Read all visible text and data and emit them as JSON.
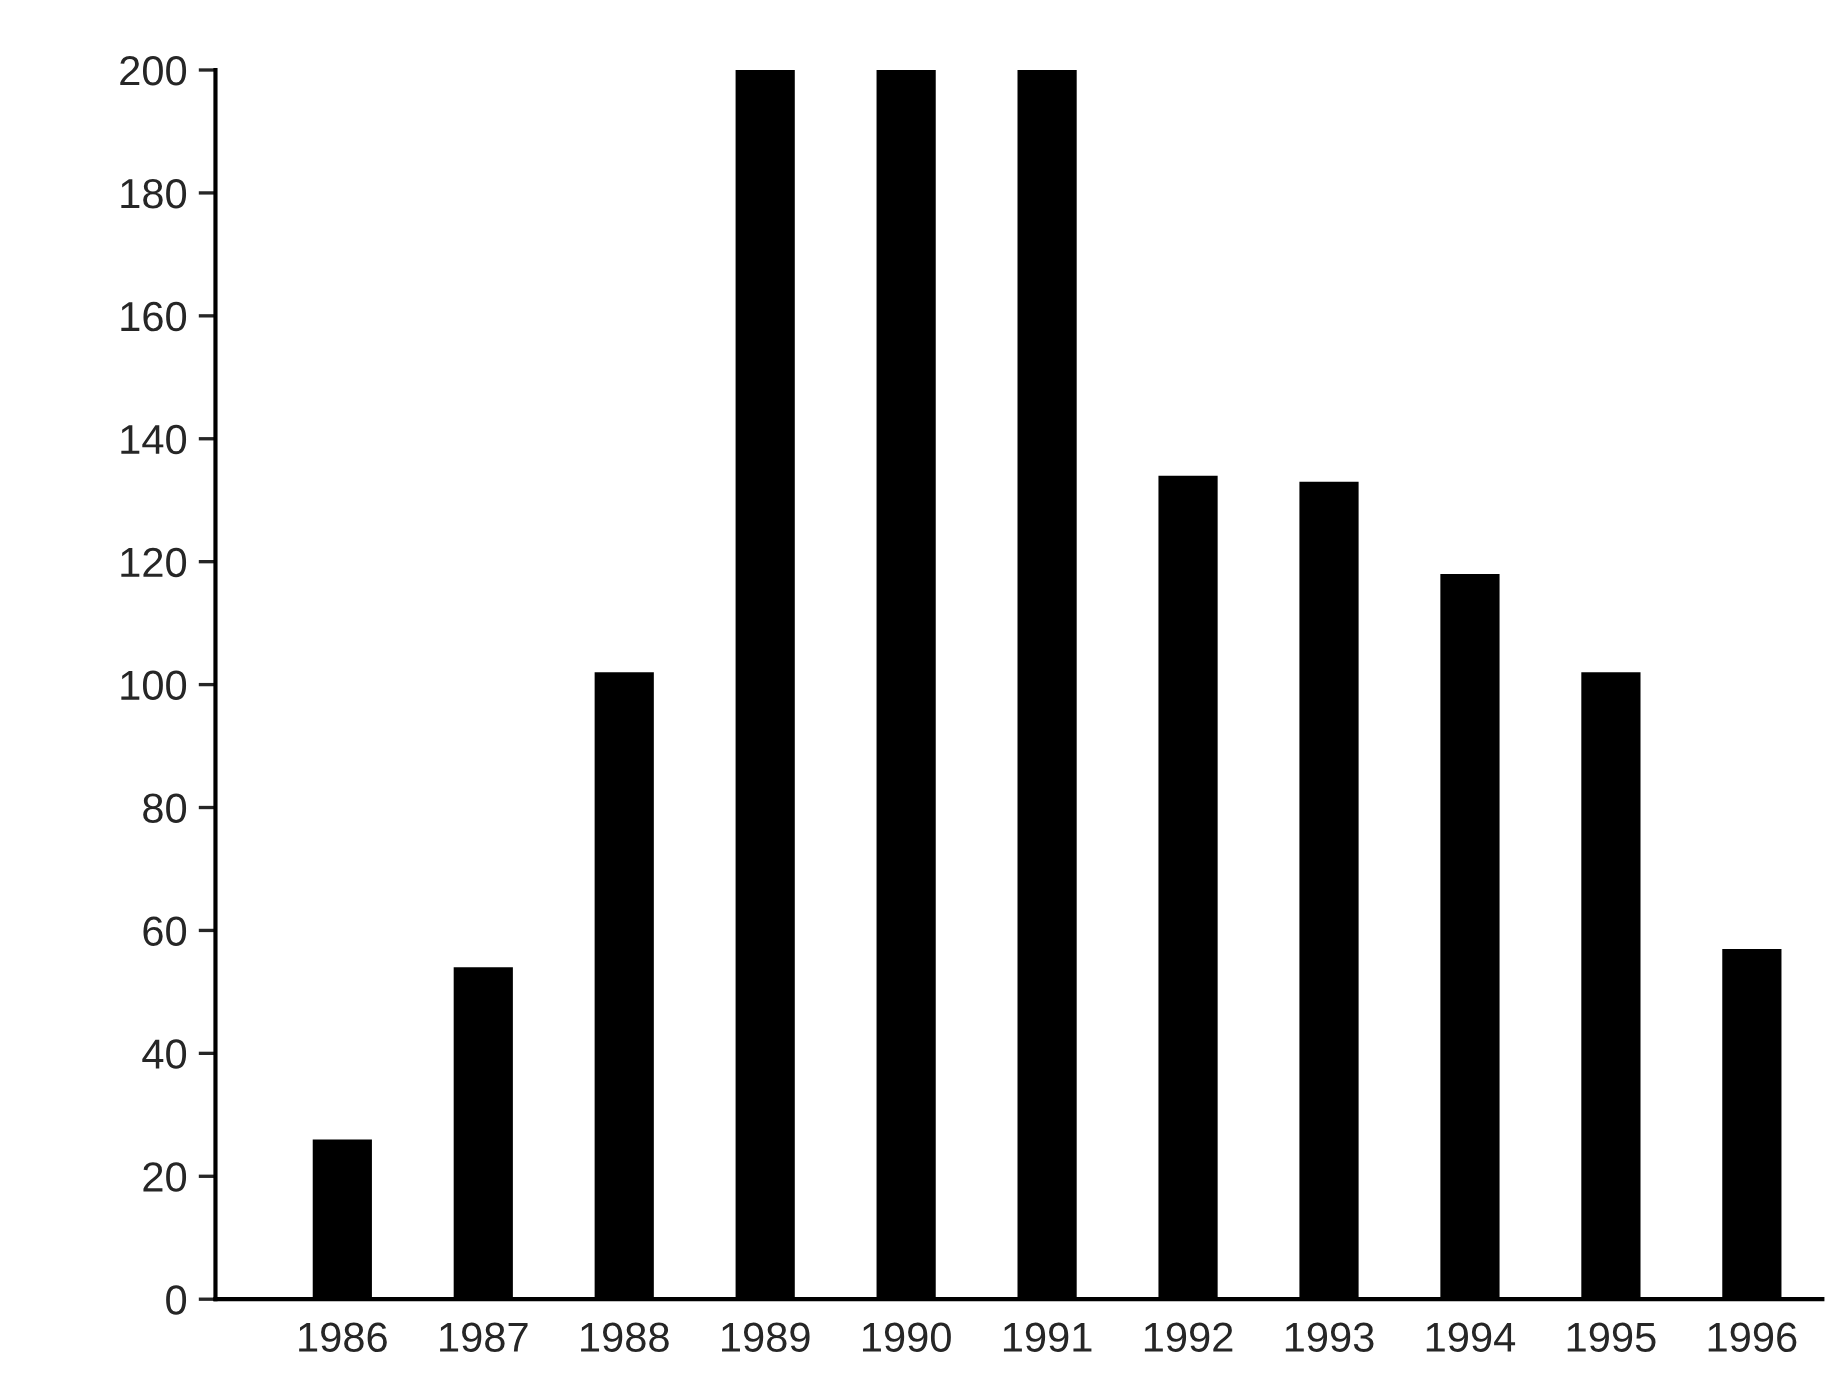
{
  "chart_data": {
    "type": "bar",
    "categories": [
      "1986",
      "1987",
      "1988",
      "1989",
      "1990",
      "1991",
      "1992",
      "1993",
      "1994",
      "1995",
      "1996"
    ],
    "values": [
      26,
      54,
      102,
      200,
      200,
      200,
      134,
      133,
      118,
      102,
      57
    ],
    "color": "#000000",
    "ylim": [
      0,
      200
    ],
    "yticks": [
      0,
      20,
      40,
      60,
      80,
      100,
      120,
      140,
      160,
      180,
      200
    ],
    "grid": false,
    "legend": false
  }
}
